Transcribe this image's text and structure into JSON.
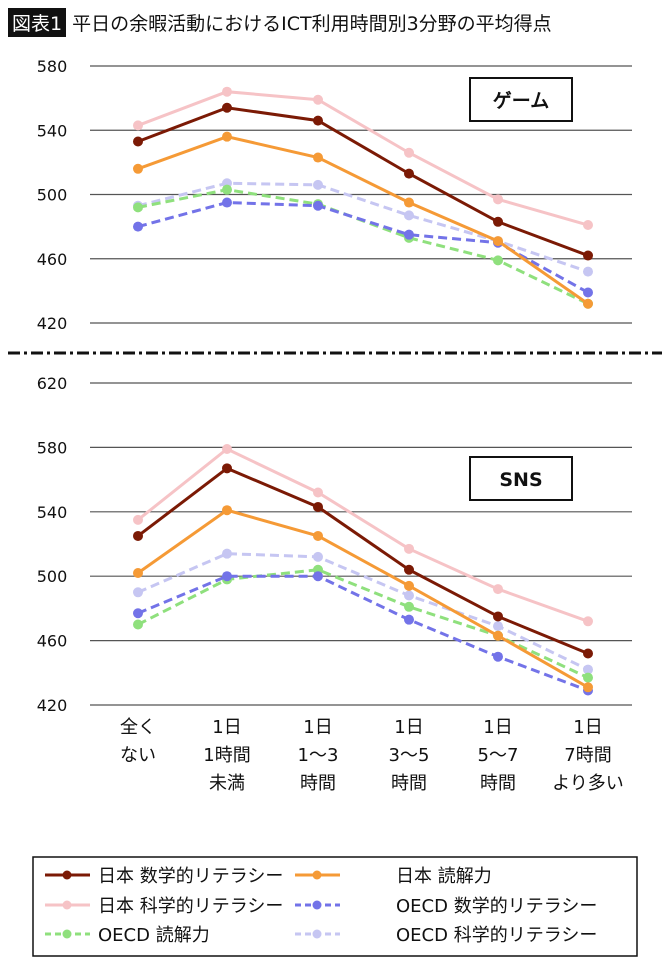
{
  "title": {
    "badge": "図表1",
    "text": "平日の余暇活動におけるICT利用時間別3分野の平均得点"
  },
  "chart_data": [
    {
      "type": "line",
      "panel_label": "ゲーム",
      "categories": [
        "全く\nない",
        "1日\n1時間\n未満",
        "1日\n1～3\n時間",
        "1日\n3～5\n時間",
        "1日\n5～7\n時間",
        "1日\n7時間\nより多い"
      ],
      "ylim": [
        420,
        580
      ],
      "yticks": [
        420,
        460,
        500,
        540,
        580
      ],
      "grid": true,
      "series": [
        {
          "name": "日本 数学的リテラシー",
          "values": [
            533,
            554,
            546,
            513,
            483,
            462
          ],
          "color": "#7b1a05",
          "dashed": false
        },
        {
          "name": "日本 読解力",
          "values": [
            516,
            536,
            523,
            495,
            471,
            432
          ],
          "color": "#f59a36",
          "dashed": false
        },
        {
          "name": "日本 科学的リテラシー",
          "values": [
            543,
            564,
            559,
            526,
            497,
            481
          ],
          "color": "#f6c3c6",
          "dashed": false
        },
        {
          "name": "OECD 数学的リテラシー",
          "values": [
            480,
            495,
            493,
            475,
            470,
            439
          ],
          "color": "#7373e8",
          "dashed": true
        },
        {
          "name": "OECD 読解力",
          "values": [
            492,
            503,
            494,
            473,
            459,
            432
          ],
          "color": "#8fe07d",
          "dashed": true
        },
        {
          "name": "OECD 科学的リテラシー",
          "values": [
            493,
            507,
            506,
            487,
            471,
            452
          ],
          "color": "#c6c6f2",
          "dashed": true
        }
      ]
    },
    {
      "type": "line",
      "panel_label": "SNS",
      "categories": [
        "全く\nない",
        "1日\n1時間\n未満",
        "1日\n1～3\n時間",
        "1日\n3～5\n時間",
        "1日\n5～7\n時間",
        "1日\n7時間\nより多い"
      ],
      "ylim": [
        420,
        620
      ],
      "yticks": [
        420,
        460,
        500,
        540,
        580,
        620
      ],
      "grid": true,
      "series": [
        {
          "name": "日本 数学的リテラシー",
          "values": [
            525,
            567,
            543,
            504,
            475,
            452
          ],
          "color": "#7b1a05",
          "dashed": false
        },
        {
          "name": "日本 読解力",
          "values": [
            502,
            541,
            525,
            494,
            463,
            431
          ],
          "color": "#f59a36",
          "dashed": false
        },
        {
          "name": "日本 科学的リテラシー",
          "values": [
            535,
            579,
            552,
            517,
            492,
            472
          ],
          "color": "#f6c3c6",
          "dashed": false
        },
        {
          "name": "OECD 数学的リテラシー",
          "values": [
            477,
            500,
            500,
            473,
            450,
            429
          ],
          "color": "#7373e8",
          "dashed": true
        },
        {
          "name": "OECD 読解力",
          "values": [
            470,
            498,
            504,
            481,
            463,
            437
          ],
          "color": "#8fe07d",
          "dashed": true
        },
        {
          "name": "OECD 科学的リテラシー",
          "values": [
            490,
            514,
            512,
            488,
            469,
            442
          ],
          "color": "#c6c6f2",
          "dashed": true
        }
      ]
    }
  ],
  "legend": {
    "placement": "bottom"
  }
}
